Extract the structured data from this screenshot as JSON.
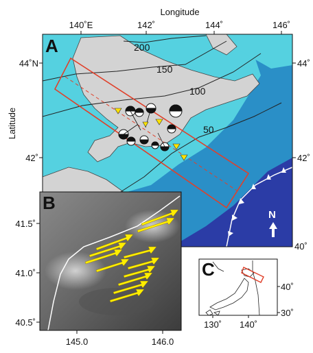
{
  "figure": {
    "top_axis_title": "Longitude",
    "left_axis_title": "Latitude",
    "panel_a": {
      "label": "A",
      "lon_ticks": [
        "140˚E",
        "142˚",
        "144˚",
        "146˚"
      ],
      "lat_ticks_left": [
        "44˚N",
        "42˚"
      ],
      "lat_ticks_right": [
        "44˚",
        "42˚",
        "40˚"
      ],
      "contour_labels": [
        "200",
        "150",
        "100",
        "50"
      ],
      "north_label": "N",
      "colors": {
        "deep_sea": "#2b3ca6",
        "mid_sea": "#2a8fc7",
        "shelf_sea": "#55d1e0",
        "land": "#d3d3d3",
        "study_box": "#e0402a",
        "station_marker": "#ffe400"
      }
    },
    "panel_b": {
      "label": "B",
      "lat_ticks": [
        "41.5˚",
        "41.0˚",
        "40.5˚"
      ],
      "lon_ticks": [
        "145.0",
        "146.0"
      ],
      "colors": {
        "vectors": "#ffee00",
        "trench_line": "#ffffff"
      }
    },
    "panel_c": {
      "label": "C",
      "lon_ticks": [
        "130˚",
        "140˚"
      ],
      "lat_ticks": [
        "40˚",
        "30˚"
      ],
      "colors": {
        "box": "#e0402a"
      }
    }
  }
}
